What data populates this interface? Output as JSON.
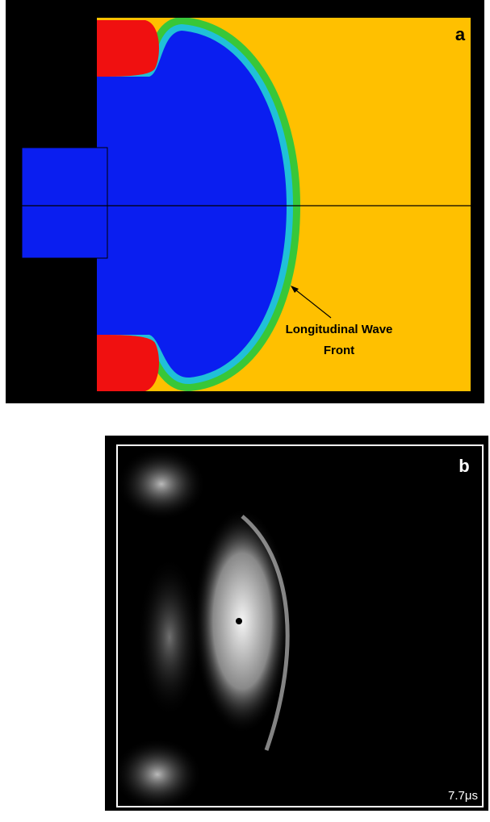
{
  "panel_a": {
    "label": "a",
    "annotation": [
      "Longitudinal Wave",
      "Front"
    ]
  },
  "panel_b": {
    "label": "b",
    "timestamp": "7.7μs"
  }
}
